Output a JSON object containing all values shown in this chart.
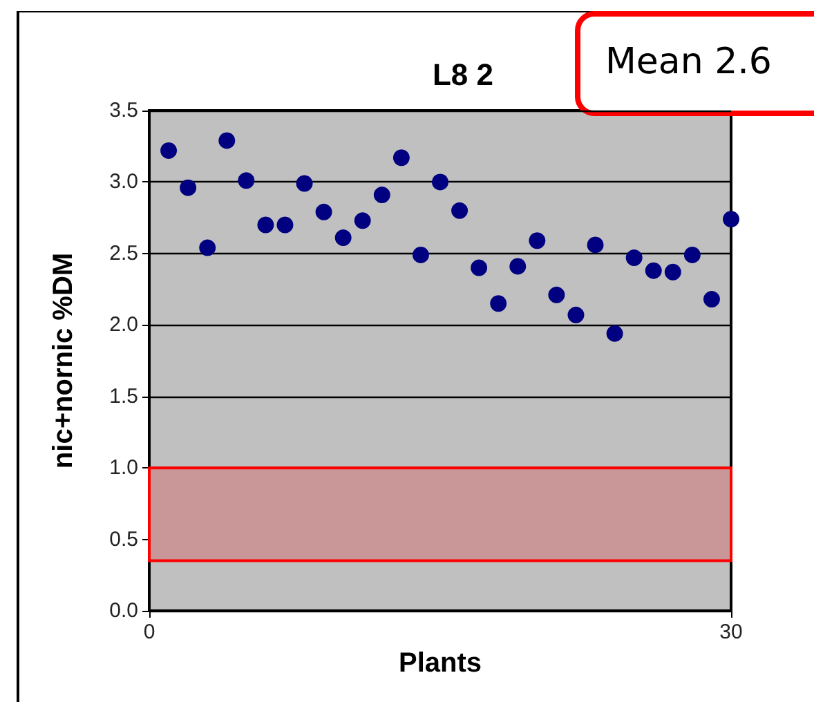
{
  "chart_data": {
    "type": "scatter",
    "title": "L8 2",
    "xlabel": "Plants",
    "ylabel": "nic+nornic %DM",
    "x": [
      1,
      2,
      3,
      4,
      5,
      6,
      7,
      8,
      9,
      10,
      11,
      12,
      13,
      14,
      15,
      16,
      17,
      18,
      19,
      20,
      21,
      22,
      23,
      24,
      25,
      26,
      27,
      28,
      29,
      30
    ],
    "series": [
      {
        "color": "#000080",
        "values": [
          3.22,
          2.96,
          2.54,
          3.29,
          3.01,
          2.7,
          2.7,
          2.99,
          2.79,
          2.61,
          2.73,
          2.91,
          3.17,
          2.49,
          3.0,
          2.8,
          2.4,
          2.15,
          2.41,
          2.59,
          2.21,
          2.07,
          2.56,
          1.94,
          2.47,
          2.38,
          2.37,
          2.49,
          2.18,
          2.74
        ]
      }
    ],
    "xlim": [
      0,
      30
    ],
    "xticks": [
      0,
      30
    ],
    "ylim": [
      0,
      3.5
    ],
    "yticks": [
      {
        "value": 0,
        "label": "0.0"
      },
      0.5,
      {
        "value": 1,
        "label": "1.0"
      },
      1.5,
      {
        "value": 2,
        "label": "2.0"
      },
      2.5,
      {
        "value": 3,
        "label": "3.0"
      },
      3.5
    ],
    "bands": [
      {
        "axis": "y",
        "from": 0.35,
        "to": 1.0,
        "color": "#c99797"
      }
    ],
    "annotations": [
      "Mean 2.6"
    ],
    "grid": "y",
    "marker": "circle"
  }
}
